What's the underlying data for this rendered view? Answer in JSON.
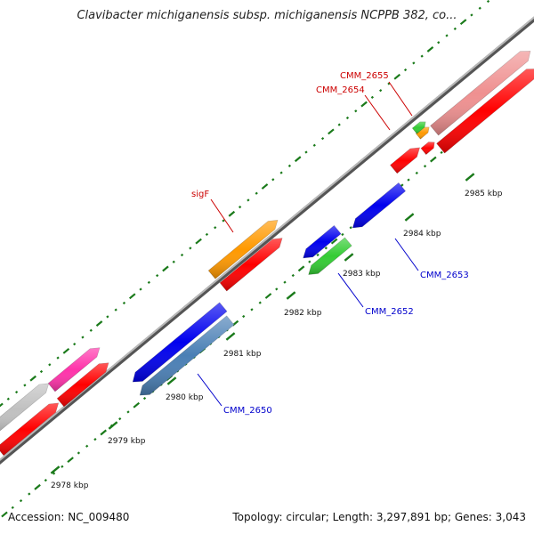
{
  "title": "Clavibacter michiganensis subsp. michiganensis NCPPB 382, co...",
  "footer": {
    "accession": "Accession: NC_009480",
    "summary": "Topology: circular; Length: 3,297,891 bp; Genes: 3,043"
  },
  "colors": {
    "backbone": "#7f7f7f",
    "tick": "#1a7a1a",
    "forward_label": "#cc0000",
    "reverse_label": "#0000cc",
    "cds": "#ff0000",
    "blue": "#0000ee",
    "steelblue": "#4a7fb5",
    "green": "#33cc33",
    "orange": "#ff9900",
    "pink": "#ff33aa",
    "gray": "#c0c0c0",
    "lightred": "#ef9090"
  },
  "ticks": [
    {
      "label": "2978 kbp"
    },
    {
      "label": "2979 kbp"
    },
    {
      "label": "2980 kbp"
    },
    {
      "label": "2981 kbp"
    },
    {
      "label": "2982 kbp"
    },
    {
      "label": "2983 kbp"
    },
    {
      "label": "2984 kbp"
    },
    {
      "label": "2985 kbp"
    }
  ],
  "gene_labels": [
    {
      "name": "sigF",
      "strand": "forward"
    },
    {
      "name": "CMM_2654",
      "strand": "forward"
    },
    {
      "name": "CMM_2655",
      "strand": "forward"
    },
    {
      "name": "CMM_2650",
      "strand": "reverse"
    },
    {
      "name": "CMM_2652",
      "strand": "reverse"
    },
    {
      "name": "CMM_2653",
      "strand": "reverse"
    }
  ]
}
